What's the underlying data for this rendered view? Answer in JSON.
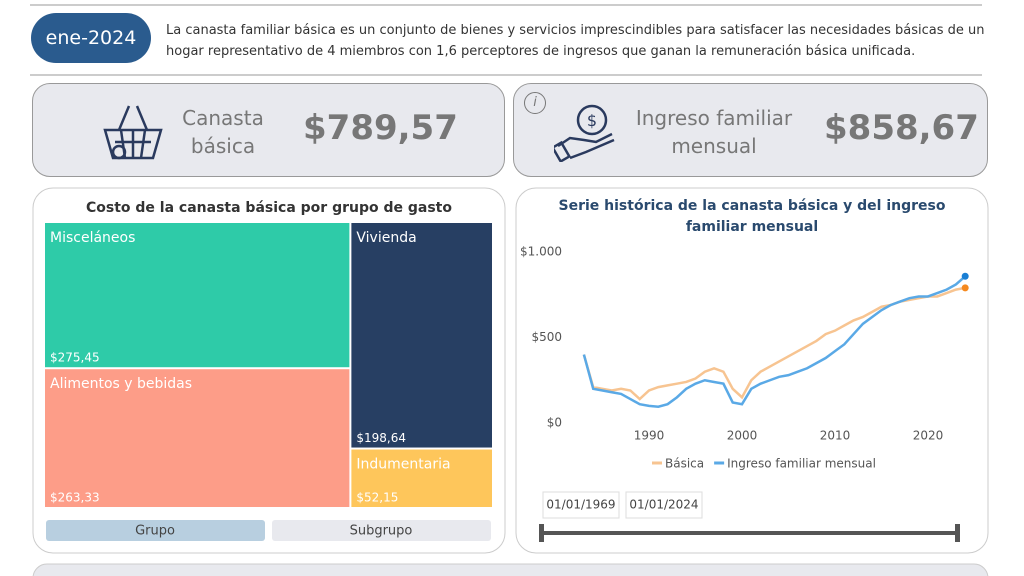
{
  "header": {
    "period": "ene-2024",
    "description": "La canasta familiar básica es un conjunto de bienes y servicios imprescindibles para satisfacer las necesidades básicas de un hogar representativo de 4 miembros con 1,6 perceptores de ingresos que ganan la remuneración básica unificada."
  },
  "cards": [
    {
      "label": "Canasta básica",
      "value": "$789,57"
    },
    {
      "label": "Ingreso familiar mensual",
      "value": "$858,67",
      "info": "i"
    }
  ],
  "chart_data": [
    {
      "type": "treemap",
      "title": "Costo de la canasta básica por grupo de gasto",
      "categories": [
        "Misceláneos",
        "Alimentos y bebidas",
        "Vivienda",
        "Indumentaria"
      ],
      "values": [
        275.45,
        263.33,
        198.64,
        52.15
      ],
      "value_labels": [
        "$275,45",
        "$263,33",
        "$198,64",
        "$52,15"
      ],
      "colors": [
        "#2ecba8",
        "#fd9d88",
        "#273f63",
        "#fec65b"
      ]
    },
    {
      "type": "line",
      "title": "Serie histórica de la canasta básica y del ingreso familiar mensual",
      "x": [
        1983,
        1984,
        1985,
        1986,
        1987,
        1988,
        1989,
        1990,
        1991,
        1992,
        1993,
        1994,
        1995,
        1996,
        1997,
        1998,
        1999,
        2000,
        2001,
        2002,
        2003,
        2004,
        2005,
        2006,
        2007,
        2008,
        2009,
        2010,
        2011,
        2012,
        2013,
        2014,
        2015,
        2016,
        2017,
        2018,
        2019,
        2020,
        2021,
        2022,
        2023,
        2024
      ],
      "series": [
        {
          "name": "Básica",
          "color": "#f7c491",
          "end_color": "#f5891f",
          "values": [
            400,
            210,
            200,
            190,
            200,
            190,
            140,
            190,
            210,
            220,
            230,
            240,
            260,
            300,
            320,
            300,
            200,
            150,
            250,
            300,
            330,
            360,
            390,
            420,
            450,
            480,
            520,
            540,
            570,
            600,
            620,
            650,
            680,
            690,
            710,
            720,
            730,
            740,
            740,
            760,
            780,
            790
          ]
        },
        {
          "name": "Ingreso familiar mensual",
          "color": "#5aa9e6",
          "end_color": "#1a7fd4",
          "values": [
            400,
            200,
            190,
            180,
            170,
            140,
            110,
            100,
            95,
            110,
            150,
            200,
            230,
            250,
            240,
            230,
            120,
            110,
            200,
            230,
            250,
            270,
            280,
            300,
            320,
            350,
            380,
            420,
            460,
            520,
            580,
            620,
            660,
            690,
            710,
            730,
            740,
            740,
            760,
            780,
            810,
            858
          ]
        }
      ],
      "xlim": [
        1980,
        2025
      ],
      "xticks": [
        1990,
        2000,
        2010,
        2020
      ],
      "ylim": [
        0,
        1000
      ],
      "yticks": [
        {
          "value": 0,
          "label": "$0"
        },
        {
          "value": 500,
          "label": "$500"
        },
        {
          "value": 1000,
          "label": "$1.000"
        }
      ]
    }
  ],
  "filters": {
    "buttons": [
      "Grupo",
      "Subgrupo"
    ],
    "dates": [
      "01/01/1969",
      "01/01/2024"
    ]
  }
}
